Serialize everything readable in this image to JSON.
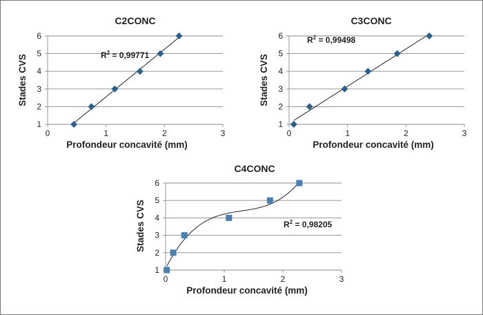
{
  "chart_data": [
    {
      "id": "c2",
      "type": "scatter",
      "title": "C2CONC",
      "xlabel": "Profondeur concavité (mm)",
      "ylabel": "Stades CVS",
      "xlim": [
        0,
        3
      ],
      "ylim": [
        1,
        6
      ],
      "xticks": [
        "0",
        "1",
        "2",
        "3"
      ],
      "yticks": [
        "1",
        "2",
        "3",
        "4",
        "5",
        "6"
      ],
      "grid": "horizontal",
      "marker": "diamond",
      "marker_color": "#2d5f8b",
      "trendline": "linear",
      "r2_prefix": "R",
      "r2_exponent": "2",
      "r2_value": " = 0,99771",
      "points": [
        {
          "x": 0.45,
          "y": 1
        },
        {
          "x": 0.75,
          "y": 2
        },
        {
          "x": 1.15,
          "y": 3
        },
        {
          "x": 1.58,
          "y": 4
        },
        {
          "x": 1.93,
          "y": 5
        },
        {
          "x": 2.25,
          "y": 6
        }
      ]
    },
    {
      "id": "c3",
      "type": "scatter",
      "title": "C3CONC",
      "xlabel": "Profondeur concavité (mm)",
      "ylabel": "Stades CVS",
      "xlim": [
        0,
        3
      ],
      "ylim": [
        1,
        6
      ],
      "xticks": [
        "0",
        "1",
        "2",
        "3"
      ],
      "yticks": [
        "1",
        "2",
        "3",
        "4",
        "5",
        "6"
      ],
      "grid": "horizontal",
      "marker": "diamond",
      "marker_color": "#2d5f8b",
      "trendline": "linear",
      "r2_prefix": "R",
      "r2_exponent": "2",
      "r2_value": " = 0,99498",
      "points": [
        {
          "x": 0.08,
          "y": 1
        },
        {
          "x": 0.35,
          "y": 2
        },
        {
          "x": 0.95,
          "y": 3
        },
        {
          "x": 1.35,
          "y": 4
        },
        {
          "x": 1.85,
          "y": 5
        },
        {
          "x": 2.4,
          "y": 6
        }
      ]
    },
    {
      "id": "c4",
      "type": "scatter",
      "title": "C4CONC",
      "xlabel": "Profondeur concavité (mm)",
      "ylabel": "Stades CVS",
      "xlim": [
        0,
        3
      ],
      "ylim": [
        1,
        6
      ],
      "xticks": [
        "0",
        "1",
        "2",
        "3"
      ],
      "yticks": [
        "1",
        "2",
        "3",
        "4",
        "5",
        "6"
      ],
      "grid": "horizontal",
      "marker": "square",
      "marker_color": "#4a7fb0",
      "trendline": "polynomial-3",
      "r2_prefix": "R",
      "r2_exponent": "2",
      "r2_value": " = 0,98205",
      "points": [
        {
          "x": 0.02,
          "y": 1
        },
        {
          "x": 0.13,
          "y": 2
        },
        {
          "x": 0.32,
          "y": 3
        },
        {
          "x": 1.08,
          "y": 4
        },
        {
          "x": 1.78,
          "y": 5
        },
        {
          "x": 2.28,
          "y": 6
        }
      ]
    }
  ]
}
